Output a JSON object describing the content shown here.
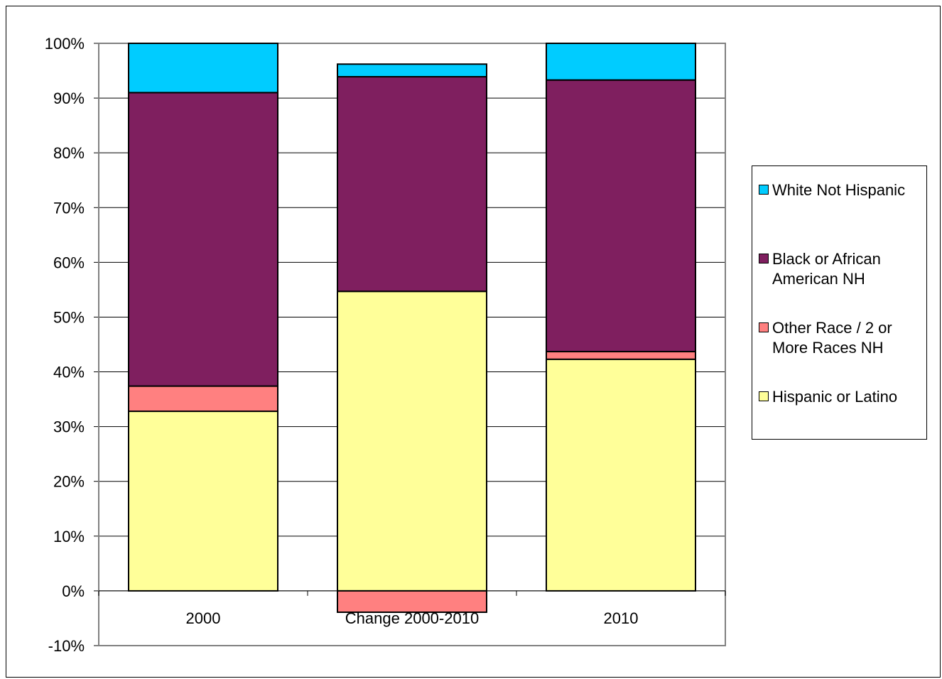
{
  "chart_data": {
    "type": "bar",
    "stacked": true,
    "categories": [
      "2000",
      "Change 2000-2010",
      "2010"
    ],
    "series": [
      {
        "name": "Hispanic or Latino",
        "color": "#FFFF99",
        "values": [
          32.8,
          54.7,
          42.3
        ]
      },
      {
        "name": "Other Race / 2 or More Races NH",
        "color": "#FF8080",
        "values": [
          4.6,
          -3.9,
          1.4
        ]
      },
      {
        "name": "Black or African American NH",
        "color": "#7F1F5F",
        "values": [
          53.6,
          39.2,
          49.6
        ]
      },
      {
        "name": "White Not Hispanic",
        "color": "#00CCFF",
        "values": [
          9.0,
          2.3,
          6.7
        ]
      }
    ],
    "ylim": [
      -10,
      100
    ],
    "yticks": [
      "-10%",
      "0%",
      "10%",
      "20%",
      "30%",
      "40%",
      "50%",
      "60%",
      "70%",
      "80%",
      "90%",
      "100%"
    ],
    "grid": true,
    "legend_position": "right",
    "title": "",
    "xlabel": "",
    "ylabel": ""
  }
}
